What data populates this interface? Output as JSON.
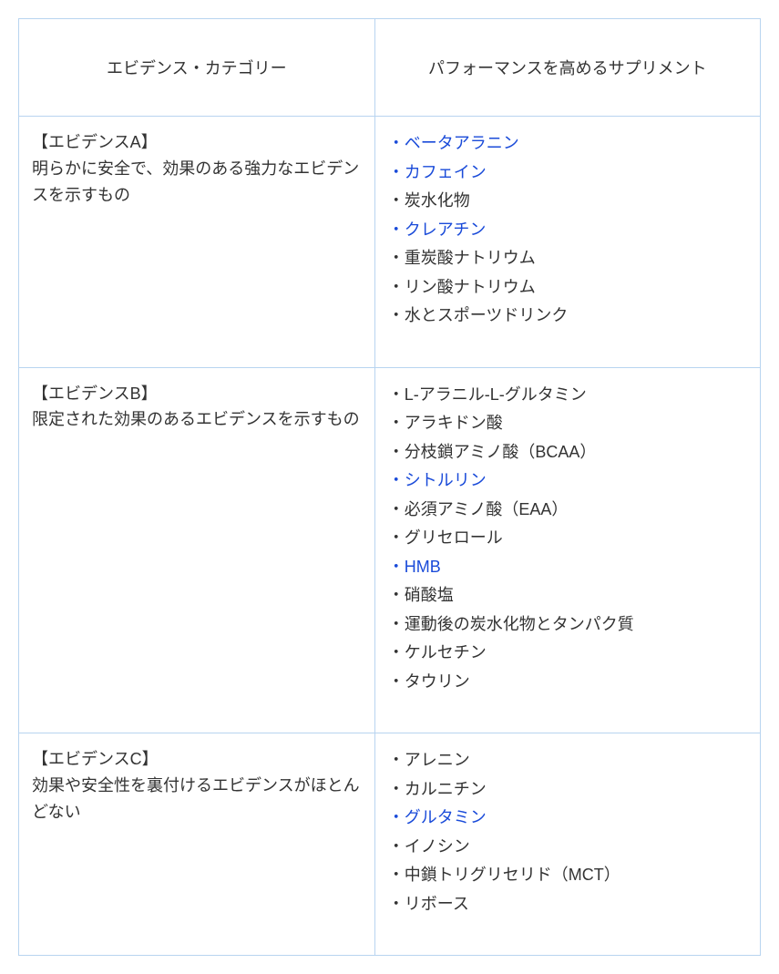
{
  "table": {
    "header": {
      "left": "エビデンス・カテゴリー",
      "right": "パフォーマンスを高めるサプリメント"
    },
    "rows": [
      {
        "title": "【エビデンスA】",
        "desc": "明らかに安全で、効果のある強力なエビデンスを示すもの",
        "items": [
          {
            "prefix": "・",
            "text": "ベータアラニン",
            "link": true
          },
          {
            "prefix": "・",
            "text": "カフェイン",
            "link": true
          },
          {
            "prefix": "・",
            "text": "炭水化物",
            "link": false
          },
          {
            "prefix": "・",
            "text": "クレアチン",
            "link": true
          },
          {
            "prefix": "・",
            "text": "重炭酸ナトリウム",
            "link": false
          },
          {
            "prefix": "・",
            "text": "リン酸ナトリウム",
            "link": false
          },
          {
            "prefix": "・",
            "text": "水とスポーツドリンク",
            "link": false
          }
        ]
      },
      {
        "title": "【エビデンスB】",
        "desc": "限定された効果のあるエビデンスを示すもの",
        "items": [
          {
            "prefix": "・",
            "text": "L-アラニル-L-グルタミン",
            "link": false
          },
          {
            "prefix": "・",
            "text": "アラキドン酸",
            "link": false
          },
          {
            "prefix": "・",
            "text": "分枝鎖アミノ酸（BCAA）",
            "link": false
          },
          {
            "prefix": "・",
            "text": "シトルリン",
            "link": true
          },
          {
            "prefix": "・",
            "text": "必須アミノ酸（EAA）",
            "link": false
          },
          {
            "prefix": "・",
            "text": "グリセロール",
            "link": false
          },
          {
            "prefix": "・",
            "text": "HMB",
            "link": true
          },
          {
            "prefix": "・",
            "text": "硝酸塩",
            "link": false
          },
          {
            "prefix": "・",
            "text": "運動後の炭水化物とタンパク質",
            "link": false
          },
          {
            "prefix": "・",
            "text": "ケルセチン",
            "link": false
          },
          {
            "prefix": "・",
            "text": "タウリン",
            "link": false
          }
        ]
      },
      {
        "title": "【エビデンスC】",
        "desc": "効果や安全性を裏付けるエビデンスがほとんどない",
        "items": [
          {
            "prefix": "・",
            "text": "アレニン",
            "link": false
          },
          {
            "prefix": "・",
            "text": "カルニチン",
            "link": false
          },
          {
            "prefix": "・",
            "text": "グルタミン",
            "link": true
          },
          {
            "prefix": "・",
            "text": "イノシン",
            "link": false
          },
          {
            "prefix": "・",
            "text": "中鎖トリグリセリド（MCT）",
            "link": false
          },
          {
            "prefix": "・",
            "text": "リボース",
            "link": false
          }
        ]
      }
    ]
  },
  "colors": {
    "border": "#b8d4f0",
    "text": "#333333",
    "link": "#1a4bd9",
    "background": "#ffffff"
  }
}
